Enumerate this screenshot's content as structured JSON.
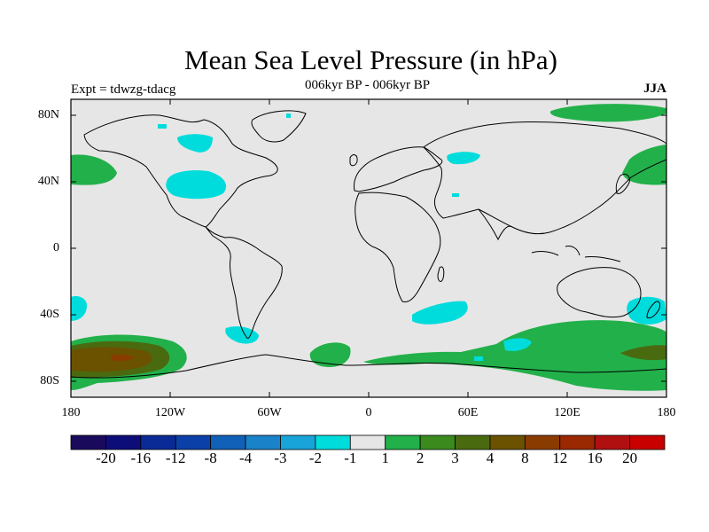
{
  "title": "Mean Sea Level Pressure (in hPa)",
  "subtitle": "006kyr BP - 006kyr BP",
  "experiment": "Expt = tdwzg-tdacg",
  "season": "JJA",
  "colors": {
    "background": "#e6e6e6",
    "coast": "#000000",
    "levels": [
      "#1a0a5c",
      "#0d0d7a",
      "#0a2a96",
      "#0a40a8",
      "#1060b8",
      "#1a82c8",
      "#18a4d8",
      "#00dcdc",
      "#e6e6e6",
      "#22b04a",
      "#3a8a1e",
      "#4a6a10",
      "#6a5200",
      "#8a3c00",
      "#9a2800",
      "#b01010",
      "#c80000"
    ]
  },
  "axes": {
    "y_ticks": [
      "80N",
      "40N",
      "0",
      "40S",
      "80S"
    ],
    "x_ticks": [
      "180",
      "120W",
      "60W",
      "0",
      "60E",
      "120E",
      "180"
    ]
  },
  "colorbar": {
    "labels": [
      "-20",
      "-16",
      "-12",
      "-8",
      "-4",
      "-3",
      "-2",
      "-1",
      "1",
      "2",
      "3",
      "4",
      "8",
      "12",
      "16",
      "20"
    ]
  },
  "anomaly_regions": [
    {
      "name": "n-pacific-west",
      "level": "positive-2"
    },
    {
      "name": "hudson-bay",
      "level": "negative-1"
    },
    {
      "name": "north-america",
      "level": "negative-1"
    },
    {
      "name": "n-atlantic-small",
      "level": "negative-1"
    },
    {
      "name": "asia-caspian",
      "level": "negative-1"
    },
    {
      "name": "arctic-east",
      "level": "positive-2"
    },
    {
      "name": "east-asia",
      "level": "positive-2"
    },
    {
      "name": "south-pacific-west",
      "level": "negative-1"
    },
    {
      "name": "south-pacific-anomaly",
      "level": "positive-4"
    },
    {
      "name": "south-america",
      "level": "negative-1"
    },
    {
      "name": "south-atlantic",
      "level": "positive-2"
    },
    {
      "name": "indian-ocean",
      "level": "negative-1"
    },
    {
      "name": "southern-ocean",
      "level": "positive-2"
    },
    {
      "name": "new-zealand",
      "level": "negative-1"
    }
  ]
}
